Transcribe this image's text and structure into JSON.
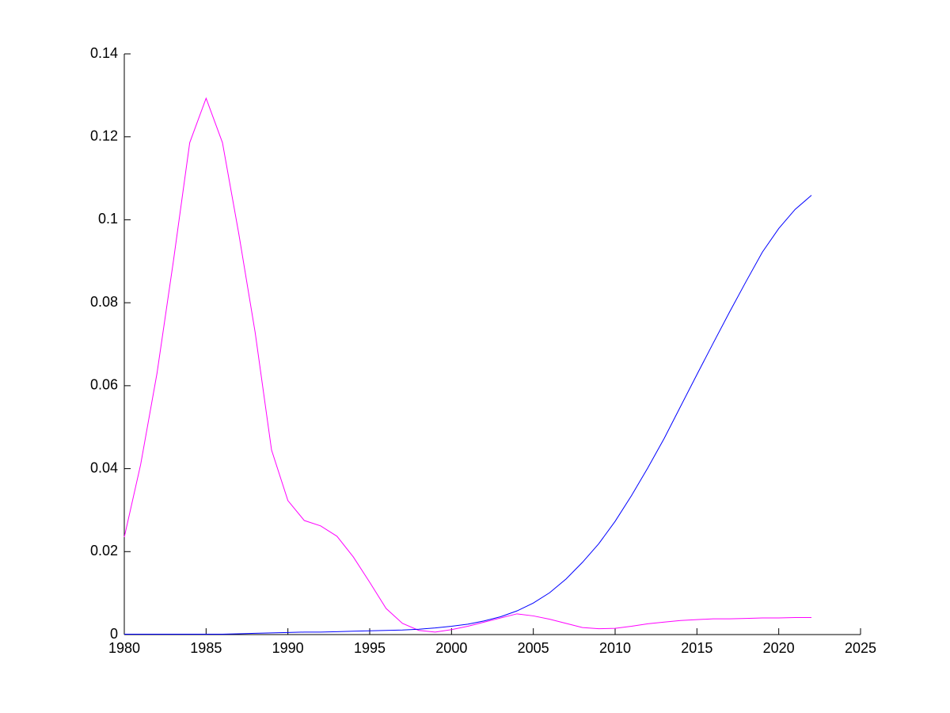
{
  "chart_data": {
    "type": "line",
    "x": [
      1980,
      1981,
      1982,
      1983,
      1984,
      1985,
      1986,
      1987,
      1988,
      1989,
      1990,
      1991,
      1992,
      1993,
      1994,
      1995,
      1996,
      1997,
      1998,
      1999,
      2000,
      2001,
      2002,
      2003,
      2004,
      2005,
      2006,
      2007,
      2008,
      2009,
      2010,
      2011,
      2012,
      2013,
      2014,
      2015,
      2016,
      2017,
      2018,
      2019,
      2020,
      2021,
      2022
    ],
    "series": [
      {
        "color": "#ff00ff",
        "values": [
          0.0235,
          0.041,
          0.063,
          0.09,
          0.1186,
          0.1293,
          0.1186,
          0.0966,
          0.0728,
          0.0445,
          0.0323,
          0.0275,
          0.0262,
          0.0237,
          0.0187,
          0.0126,
          0.0063,
          0.0027,
          0.001,
          0.0006,
          0.0012,
          0.002,
          0.003,
          0.004,
          0.005,
          0.0045,
          0.0037,
          0.0027,
          0.0017,
          0.0014,
          0.0015,
          0.002,
          0.0026,
          0.003,
          0.0034,
          0.0036,
          0.0038,
          0.0038,
          0.0039,
          0.004,
          0.004,
          0.0041,
          0.0041
        ]
      },
      {
        "color": "#0000ff",
        "values": [
          0.0001,
          0.0001,
          0.0001,
          0.0001,
          0.0001,
          0.0001,
          0.0001,
          0.0002,
          0.0003,
          0.0004,
          0.0005,
          0.0006,
          0.0006,
          0.0007,
          0.0008,
          0.0009,
          0.001,
          0.0011,
          0.0013,
          0.0016,
          0.002,
          0.0025,
          0.0033,
          0.0043,
          0.0057,
          0.0076,
          0.0101,
          0.0134,
          0.0174,
          0.0219,
          0.0273,
          0.0335,
          0.0402,
          0.0473,
          0.055,
          0.0627,
          0.0703,
          0.0778,
          0.0851,
          0.0922,
          0.0979,
          0.1025,
          0.1059
        ]
      }
    ],
    "xlim": [
      1980,
      2025
    ],
    "xticks": [
      1980,
      1985,
      1990,
      1995,
      2000,
      2005,
      2010,
      2015,
      2020,
      2025
    ],
    "ylim": [
      0,
      0.14
    ],
    "yticks": [
      0,
      0.02,
      0.04,
      0.06,
      0.08,
      0.1,
      0.12,
      0.14
    ],
    "grid": false
  }
}
